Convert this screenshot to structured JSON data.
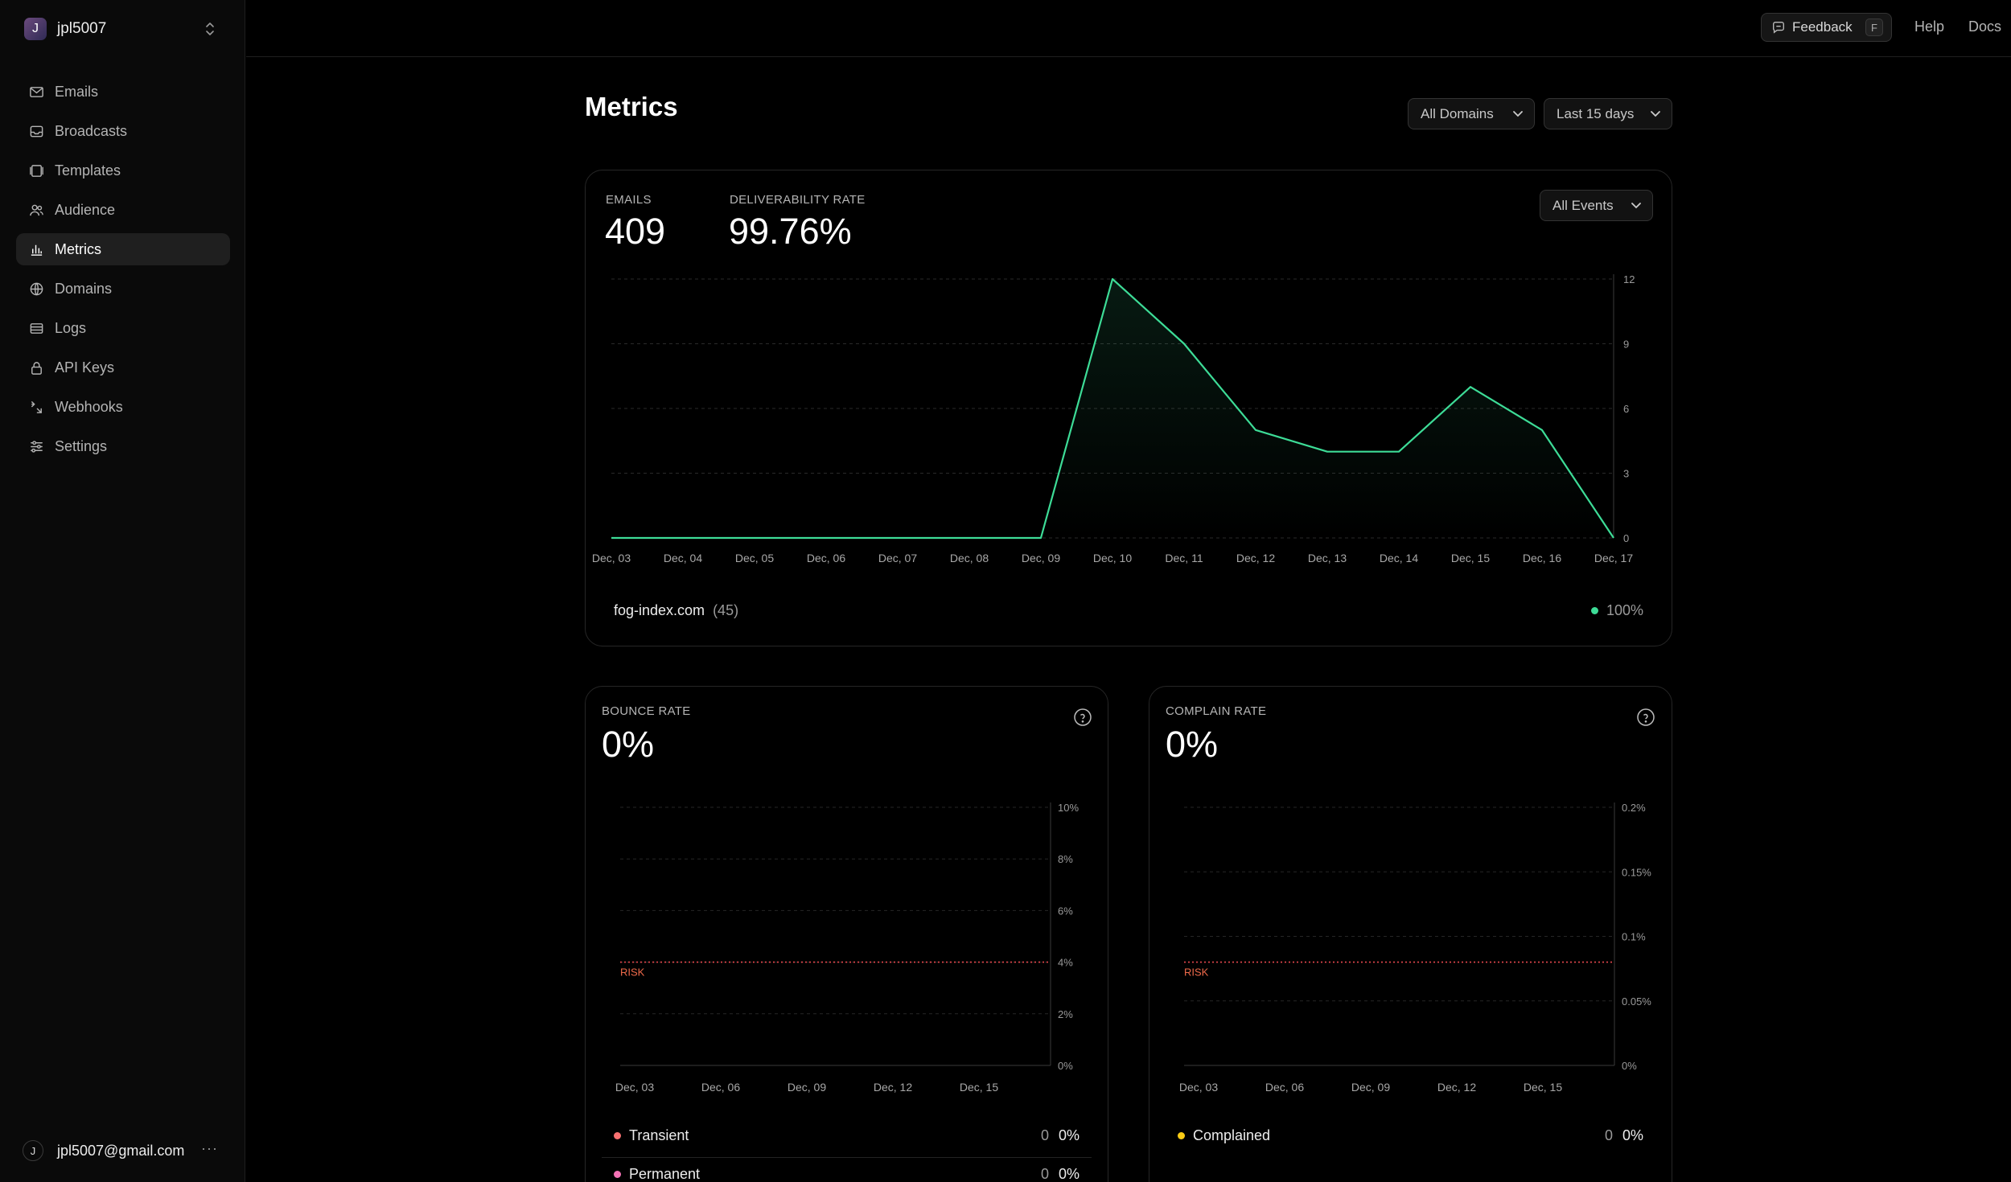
{
  "sidebar": {
    "team": {
      "initial": "J",
      "name": "jpl5007"
    },
    "items": [
      {
        "label": "Emails",
        "icon": "mail-icon"
      },
      {
        "label": "Broadcasts",
        "icon": "inbox-icon"
      },
      {
        "label": "Templates",
        "icon": "template-icon"
      },
      {
        "label": "Audience",
        "icon": "users-icon"
      },
      {
        "label": "Metrics",
        "icon": "bar-chart-icon",
        "active": true
      },
      {
        "label": "Domains",
        "icon": "globe-icon"
      },
      {
        "label": "Logs",
        "icon": "logs-icon"
      },
      {
        "label": "API Keys",
        "icon": "lock-icon"
      },
      {
        "label": "Webhooks",
        "icon": "webhook-icon"
      },
      {
        "label": "Settings",
        "icon": "sliders-icon"
      }
    ],
    "user": {
      "initial": "J",
      "email": "jpl5007@gmail.com",
      "more": "···"
    }
  },
  "topbar": {
    "feedback_label": "Feedback",
    "feedback_shortcut": "F",
    "help_label": "Help",
    "docs_label": "Docs"
  },
  "page": {
    "title": "Metrics",
    "domain_filter": "All Domains",
    "range_filter": "Last 15 days"
  },
  "overview": {
    "emails_label": "EMAILS",
    "emails_value": "409",
    "deliverability_label": "DELIVERABILITY RATE",
    "deliverability_value": "99.76%",
    "events_filter": "All Events",
    "domain_name": "fog-index.com",
    "domain_count": "(45)",
    "domain_rate": "100%"
  },
  "bounce": {
    "label": "BOUNCE RATE",
    "value": "0%",
    "risk_label": "RISK",
    "rows": [
      {
        "name": "Transient",
        "count": "0",
        "pct": "0%"
      },
      {
        "name": "Permanent",
        "count": "0",
        "pct": "0%"
      }
    ]
  },
  "complain": {
    "label": "COMPLAIN RATE",
    "value": "0%",
    "risk_label": "RISK",
    "rows": [
      {
        "name": "Complained",
        "count": "0",
        "pct": "0%"
      }
    ]
  },
  "colors": {
    "accent_green": "#3ddc97",
    "risk": "#e5484d",
    "transient": "#f87171",
    "permanent": "#f472b6",
    "complained": "#facc15"
  },
  "chart_data": [
    {
      "type": "area",
      "x": [
        "Dec, 03",
        "Dec, 04",
        "Dec, 05",
        "Dec, 06",
        "Dec, 07",
        "Dec, 08",
        "Dec, 09",
        "Dec, 10",
        "Dec, 11",
        "Dec, 12",
        "Dec, 13",
        "Dec, 14",
        "Dec, 15",
        "Dec, 16",
        "Dec, 17"
      ],
      "values": [
        0,
        0,
        0,
        0,
        0,
        0,
        0,
        12,
        9,
        5,
        4,
        4,
        7,
        5,
        0
      ],
      "ylim": [
        0,
        12
      ],
      "yticks": [
        "0",
        "3",
        "6",
        "9",
        "12"
      ],
      "grid": true
    },
    {
      "type": "line",
      "xticks": [
        "Dec, 03",
        "Dec, 06",
        "Dec, 09",
        "Dec, 12",
        "Dec, 15"
      ],
      "yticks": [
        "0%",
        "2%",
        "4%",
        "6%",
        "8%",
        "10%"
      ],
      "ylim": [
        0,
        10
      ],
      "risk_threshold": 4,
      "values": [],
      "grid": true
    },
    {
      "type": "line",
      "xticks": [
        "Dec, 03",
        "Dec, 06",
        "Dec, 09",
        "Dec, 12",
        "Dec, 15"
      ],
      "yticks": [
        "0%",
        "0.05%",
        "0.1%",
        "0.15%",
        "0.2%"
      ],
      "ylim": [
        0,
        0.2
      ],
      "risk_threshold": 0.08,
      "values": [],
      "grid": true
    }
  ]
}
